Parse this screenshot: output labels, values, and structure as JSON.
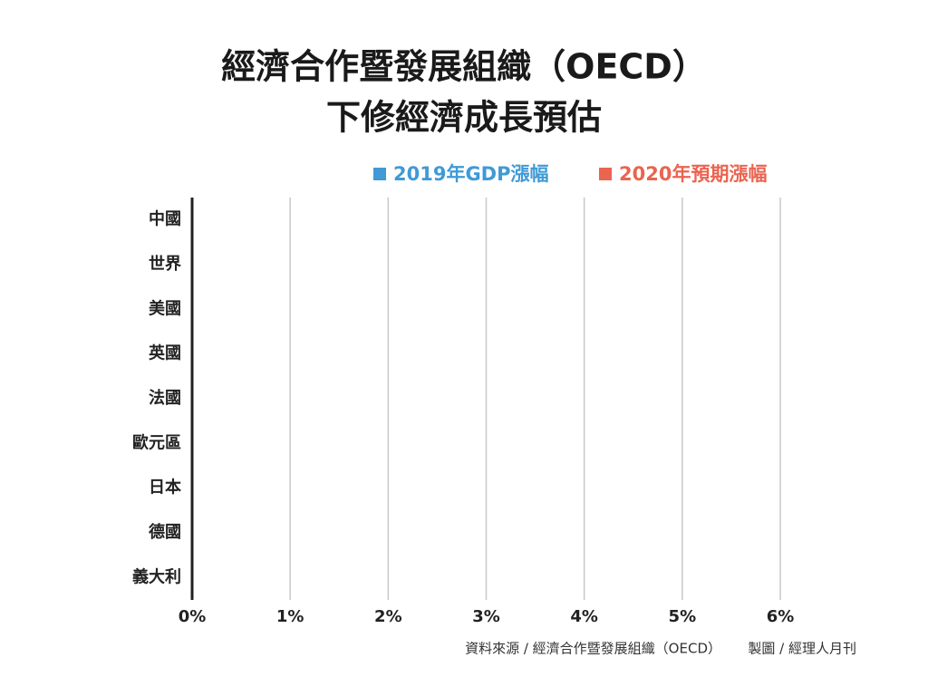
{
  "chart_data": {
    "type": "barh",
    "title": [
      "經濟合作暨發展組織（OECD）",
      "下修經濟成長預估"
    ],
    "categories": [
      "中國",
      "世界",
      "美國",
      "英國",
      "法國",
      "歐元區",
      "日本",
      "德國",
      "義大利"
    ],
    "series": [
      {
        "name": "2019年GDP漲幅",
        "color": "#3f9ad6",
        "values": [
          null,
          null,
          null,
          null,
          null,
          null,
          null,
          null,
          null
        ]
      },
      {
        "name": "2020年預期漲幅",
        "color": "#ea6450",
        "values": [
          null,
          null,
          null,
          null,
          null,
          null,
          null,
          null,
          null
        ]
      }
    ],
    "xlim": [
      0,
      6
    ],
    "xticks": [
      {
        "value": 0,
        "label": "0%"
      },
      {
        "value": 1,
        "label": "1%"
      },
      {
        "value": 2,
        "label": "2%"
      },
      {
        "value": 3,
        "label": "3%"
      },
      {
        "value": 4,
        "label": "4%"
      },
      {
        "value": 5,
        "label": "5%"
      },
      {
        "value": 6,
        "label": "6%"
      }
    ],
    "grid": true,
    "source": "資料來源 / 經濟合作暨發展組織（OECD）",
    "credit": "製圖 / 經理人月刊"
  }
}
